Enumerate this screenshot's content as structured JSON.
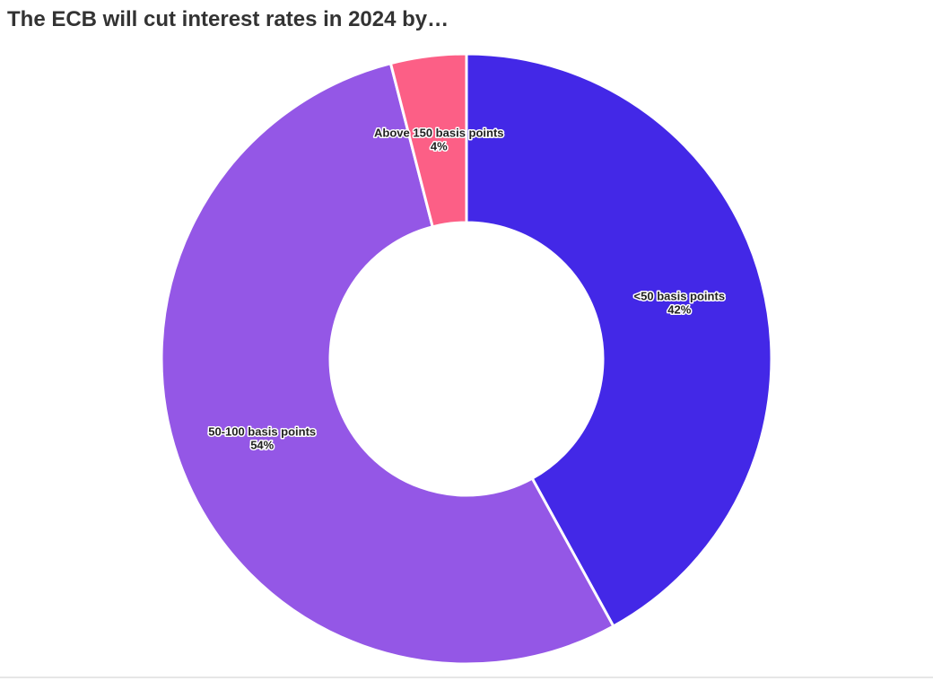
{
  "chart_data": {
    "type": "donut",
    "title": "The ECB will cut interest rates in 2024 by…",
    "categories": [
      "<50 basis points",
      "50-100 basis points",
      "Above 150 basis points"
    ],
    "values": [
      42,
      54,
      4
    ],
    "value_labels": [
      "42%",
      "54%",
      "4%"
    ],
    "colors": [
      "#4328e7",
      "#9457e6",
      "#fc5f86"
    ]
  }
}
